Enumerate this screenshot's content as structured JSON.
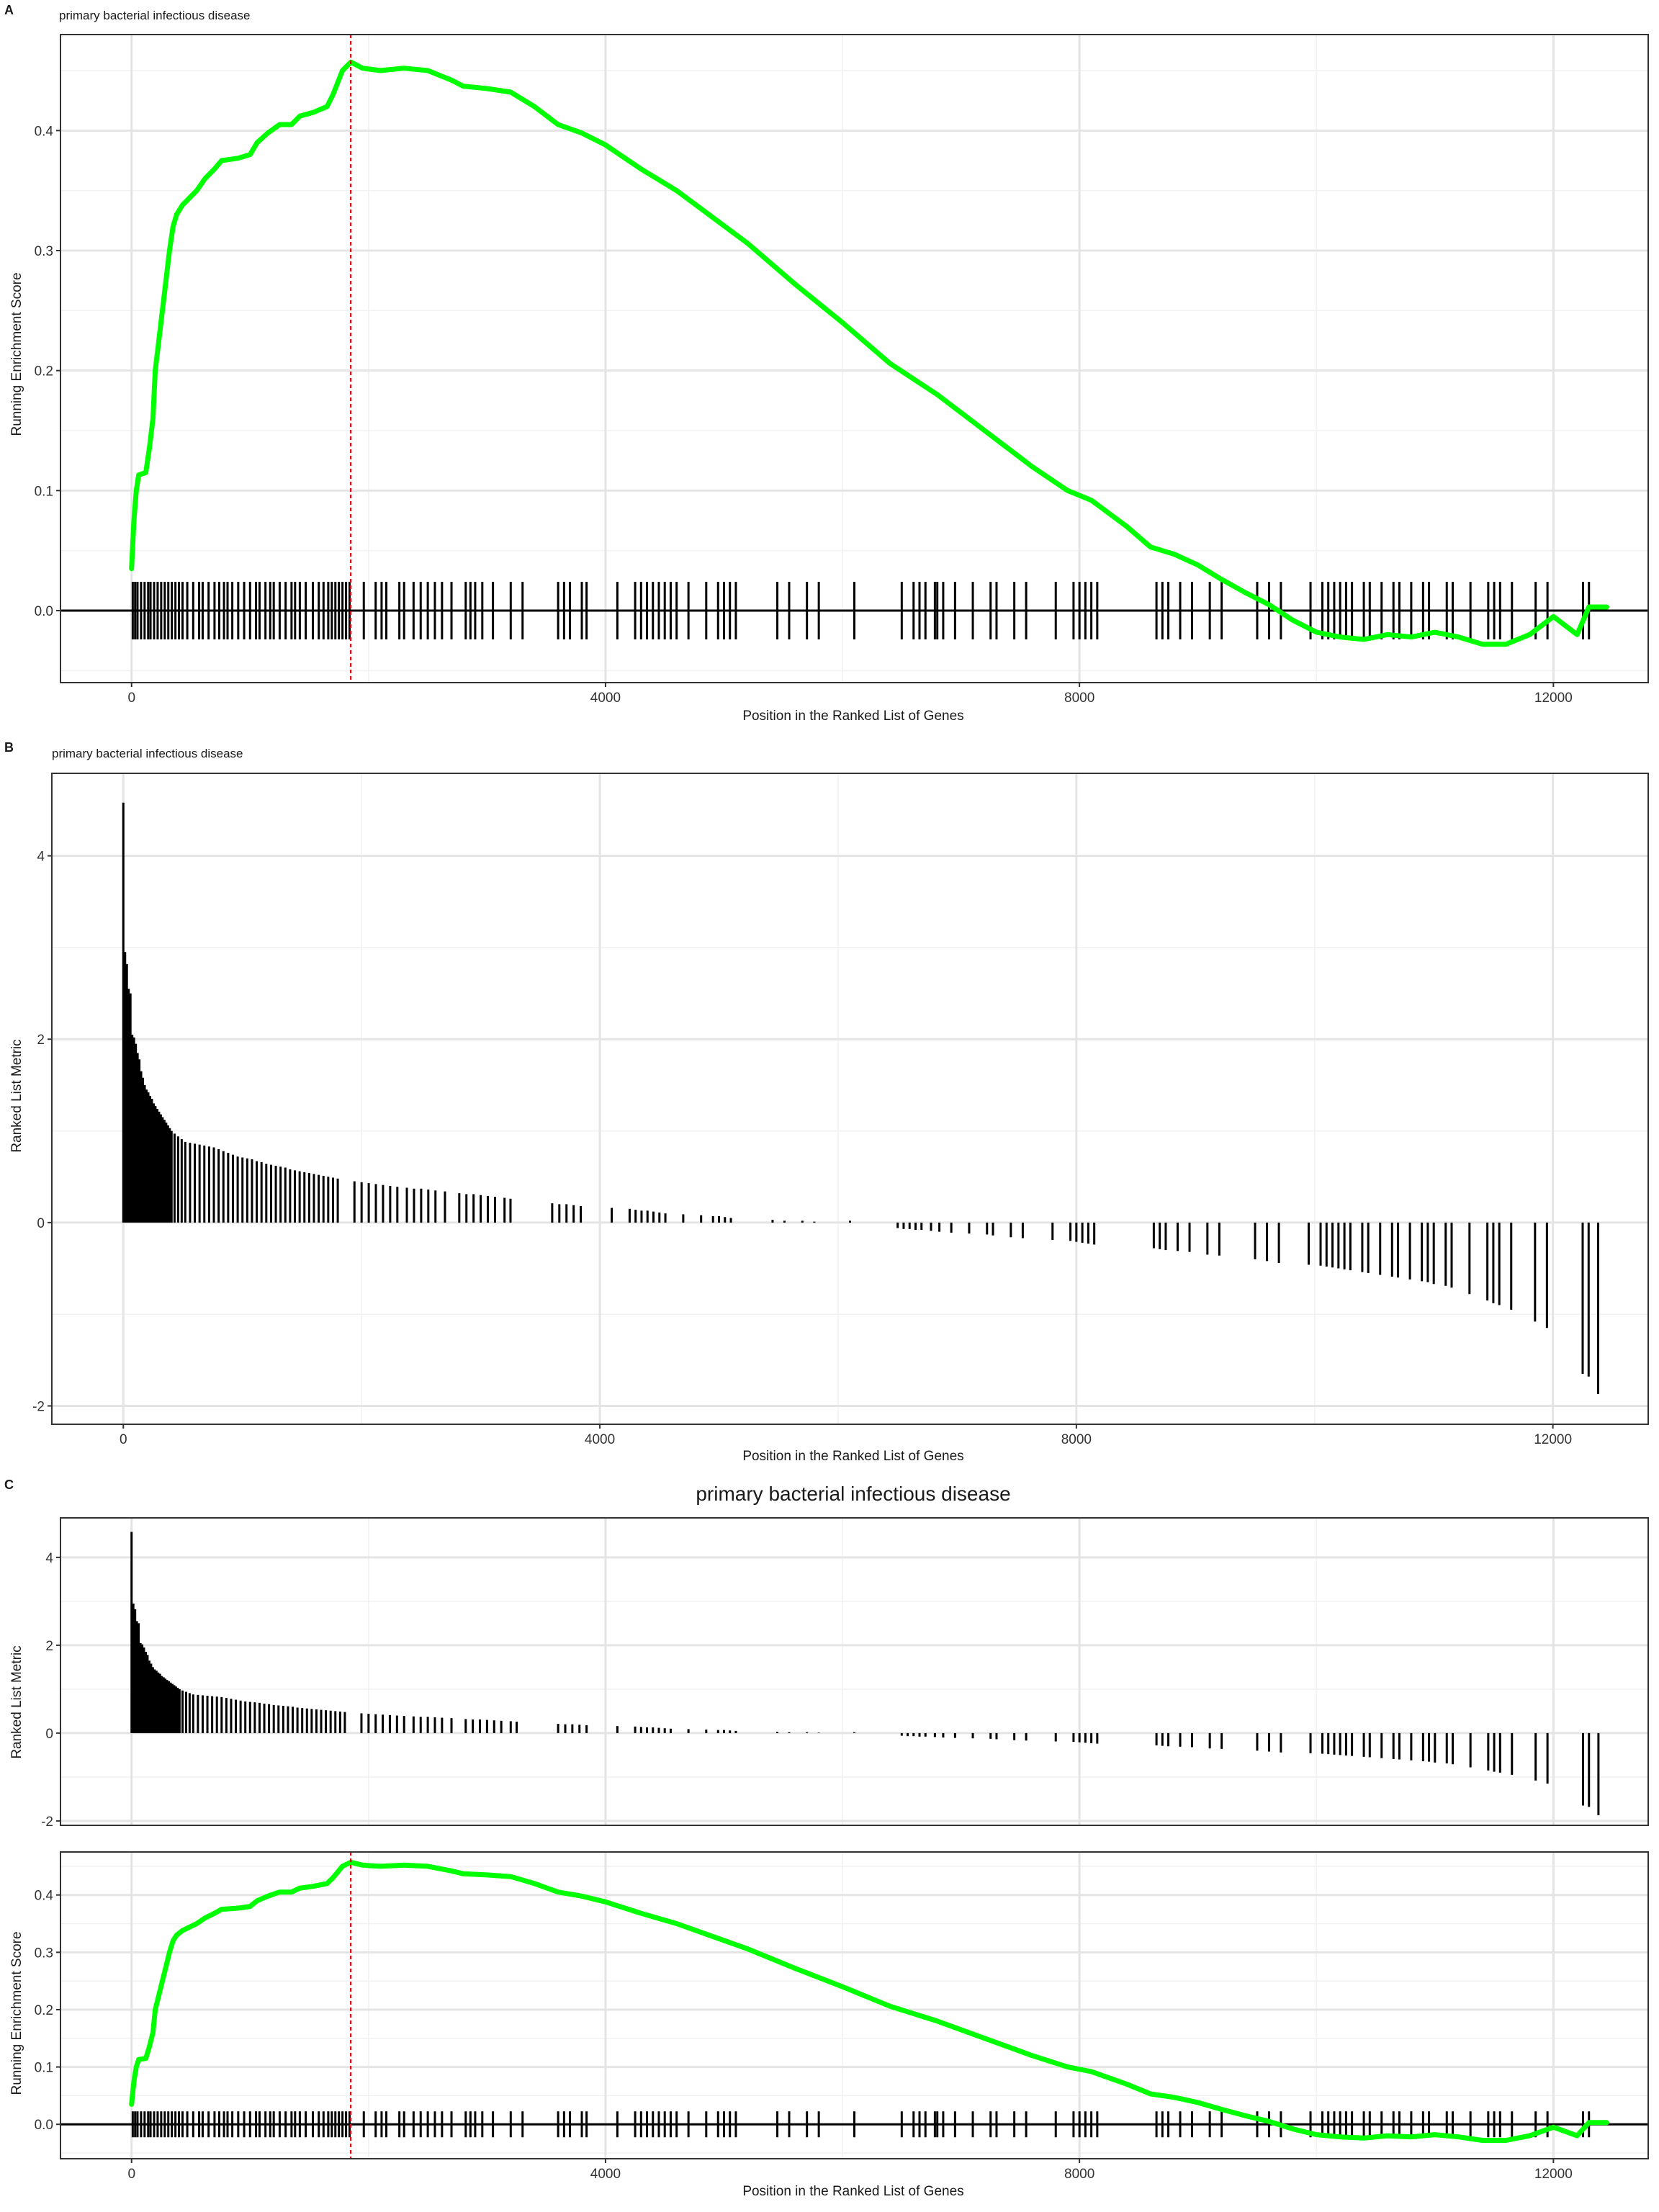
{
  "panels": {
    "A": {
      "tag": "A",
      "title": "primary bacterial infectious disease",
      "xlabel": "Position in the Ranked List of Genes",
      "ylabel": "Running Enrichment Score"
    },
    "B": {
      "tag": "B",
      "title": "primary bacterial infectious disease",
      "xlabel": "Position in the Ranked List of Genes",
      "ylabel": "Ranked List Metric"
    },
    "C": {
      "tag": "C",
      "title": "primary bacterial infectious disease",
      "xlabel": "Position in the Ranked List of Genes",
      "ylabel_top": "Ranked List Metric",
      "ylabel_bottom": "Running Enrichment Score"
    }
  },
  "colors": {
    "curve": "#00ff00",
    "peak_line": "#e8000b",
    "hits": "#000000",
    "bars": "#000000"
  },
  "chart_data": {
    "type": "line",
    "description_free": true,
    "x_ticks": [
      0,
      4000,
      8000,
      12000
    ],
    "xlim": [
      -600,
      12800
    ],
    "es_ticks": [
      0.0,
      0.1,
      0.2,
      0.3,
      0.4
    ],
    "es_tick_labels": [
      "0.0",
      "0.1",
      "0.2",
      "0.3",
      "0.4"
    ],
    "es_ylim": [
      -0.06,
      0.48
    ],
    "metric_ticks": [
      -2,
      0,
      2,
      4
    ],
    "metric_tick_labels": [
      "-2",
      "0",
      "2",
      "4"
    ],
    "metric_ylim": [
      -2.2,
      4.9
    ],
    "metric_ylim_c": [
      -2.1,
      4.9
    ],
    "peak_position": 1850,
    "es_curve": [
      [
        0,
        0.035
      ],
      [
        20,
        0.075
      ],
      [
        40,
        0.1
      ],
      [
        60,
        0.113
      ],
      [
        120,
        0.115
      ],
      [
        150,
        0.135
      ],
      [
        180,
        0.16
      ],
      [
        200,
        0.2
      ],
      [
        230,
        0.225
      ],
      [
        260,
        0.25
      ],
      [
        290,
        0.275
      ],
      [
        320,
        0.3
      ],
      [
        350,
        0.32
      ],
      [
        380,
        0.33
      ],
      [
        430,
        0.338
      ],
      [
        500,
        0.345
      ],
      [
        550,
        0.35
      ],
      [
        620,
        0.36
      ],
      [
        700,
        0.368
      ],
      [
        760,
        0.375
      ],
      [
        900,
        0.377
      ],
      [
        1000,
        0.38
      ],
      [
        1060,
        0.39
      ],
      [
        1150,
        0.398
      ],
      [
        1250,
        0.405
      ],
      [
        1350,
        0.405
      ],
      [
        1420,
        0.412
      ],
      [
        1530,
        0.415
      ],
      [
        1650,
        0.42
      ],
      [
        1700,
        0.43
      ],
      [
        1780,
        0.45
      ],
      [
        1850,
        0.457
      ],
      [
        1950,
        0.452
      ],
      [
        2100,
        0.45
      ],
      [
        2300,
        0.452
      ],
      [
        2500,
        0.45
      ],
      [
        2700,
        0.442
      ],
      [
        2800,
        0.437
      ],
      [
        3000,
        0.435
      ],
      [
        3200,
        0.432
      ],
      [
        3400,
        0.42
      ],
      [
        3600,
        0.405
      ],
      [
        3800,
        0.398
      ],
      [
        4000,
        0.388
      ],
      [
        4300,
        0.368
      ],
      [
        4600,
        0.35
      ],
      [
        4900,
        0.328
      ],
      [
        5200,
        0.306
      ],
      [
        5600,
        0.272
      ],
      [
        6000,
        0.24
      ],
      [
        6400,
        0.206
      ],
      [
        6800,
        0.18
      ],
      [
        7200,
        0.15
      ],
      [
        7600,
        0.12
      ],
      [
        7900,
        0.1
      ],
      [
        8100,
        0.092
      ],
      [
        8400,
        0.07
      ],
      [
        8600,
        0.053
      ],
      [
        8800,
        0.047
      ],
      [
        9000,
        0.038
      ],
      [
        9200,
        0.026
      ],
      [
        9400,
        0.015
      ],
      [
        9600,
        0.005
      ],
      [
        9800,
        -0.008
      ],
      [
        10000,
        -0.018
      ],
      [
        10200,
        -0.022
      ],
      [
        10400,
        -0.024
      ],
      [
        10600,
        -0.02
      ],
      [
        10800,
        -0.022
      ],
      [
        11000,
        -0.018
      ],
      [
        11200,
        -0.022
      ],
      [
        11400,
        -0.028
      ],
      [
        11600,
        -0.028
      ],
      [
        11800,
        -0.02
      ],
      [
        12000,
        -0.005
      ],
      [
        12200,
        -0.02
      ],
      [
        12300,
        0.003
      ],
      [
        12450,
        0.003
      ]
    ],
    "hit_positions": [
      10,
      30,
      50,
      80,
      110,
      140,
      160,
      190,
      220,
      250,
      280,
      310,
      340,
      370,
      400,
      430,
      470,
      520,
      570,
      600,
      650,
      700,
      740,
      780,
      810,
      850,
      900,
      950,
      1000,
      1050,
      1080,
      1130,
      1170,
      1200,
      1250,
      1300,
      1350,
      1380,
      1420,
      1470,
      1530,
      1580,
      1620,
      1660,
      1690,
      1720,
      1750,
      1780,
      1810,
      1840,
      1960,
      2060,
      2110,
      2150,
      2260,
      2300,
      2380,
      2440,
      2500,
      2560,
      2620,
      2700,
      2820,
      2860,
      2900,
      2960,
      3050,
      3200,
      3300,
      3600,
      3650,
      3700,
      3800,
      3840,
      4100,
      4250,
      4300,
      4350,
      4400,
      4450,
      4500,
      4550,
      4600,
      4700,
      4850,
      4950,
      5000,
      5050,
      5100,
      5450,
      5550,
      5700,
      5800,
      6100,
      6500,
      6600,
      6650,
      6700,
      6780,
      6800,
      6850,
      6950,
      7100,
      7250,
      7300,
      7450,
      7550,
      7800,
      7950,
      8000,
      8050,
      8100,
      8150,
      8650,
      8700,
      8750,
      8850,
      8950,
      9100,
      9200,
      9500,
      9600,
      9700,
      9950,
      10050,
      10100,
      10150,
      10200,
      10250,
      10300,
      10400,
      10450,
      10550,
      10650,
      10700,
      10800,
      10900,
      10950,
      11100,
      11150,
      11300,
      11450,
      11500,
      11550,
      11650,
      11850,
      11950,
      12250,
      12300
    ],
    "metric_bars": [
      [
        0,
        4.58
      ],
      [
        15,
        2.95
      ],
      [
        30,
        2.82
      ],
      [
        45,
        2.55
      ],
      [
        60,
        2.5
      ],
      [
        75,
        2.05
      ],
      [
        90,
        2.02
      ],
      [
        105,
        1.95
      ],
      [
        120,
        1.85
      ],
      [
        135,
        1.78
      ],
      [
        150,
        1.65
      ],
      [
        165,
        1.58
      ],
      [
        180,
        1.5
      ],
      [
        195,
        1.45
      ],
      [
        210,
        1.42
      ],
      [
        225,
        1.38
      ],
      [
        240,
        1.35
      ],
      [
        255,
        1.3
      ],
      [
        270,
        1.27
      ],
      [
        285,
        1.24
      ],
      [
        300,
        1.21
      ],
      [
        315,
        1.18
      ],
      [
        330,
        1.15
      ],
      [
        345,
        1.12
      ],
      [
        360,
        1.09
      ],
      [
        375,
        1.06
      ],
      [
        390,
        1.03
      ],
      [
        405,
        1.0
      ],
      [
        430,
        0.97
      ],
      [
        460,
        0.94
      ],
      [
        490,
        0.91
      ],
      [
        520,
        0.88
      ],
      [
        560,
        0.87
      ],
      [
        600,
        0.86
      ],
      [
        640,
        0.85
      ],
      [
        680,
        0.84
      ],
      [
        720,
        0.83
      ],
      [
        760,
        0.82
      ],
      [
        800,
        0.8
      ],
      [
        840,
        0.78
      ],
      [
        880,
        0.76
      ],
      [
        920,
        0.74
      ],
      [
        960,
        0.72
      ],
      [
        1000,
        0.71
      ],
      [
        1040,
        0.7
      ],
      [
        1080,
        0.69
      ],
      [
        1120,
        0.67
      ],
      [
        1160,
        0.66
      ],
      [
        1200,
        0.64
      ],
      [
        1240,
        0.63
      ],
      [
        1280,
        0.62
      ],
      [
        1320,
        0.61
      ],
      [
        1360,
        0.6
      ],
      [
        1400,
        0.58
      ],
      [
        1440,
        0.57
      ],
      [
        1480,
        0.56
      ],
      [
        1520,
        0.55
      ],
      [
        1560,
        0.54
      ],
      [
        1600,
        0.53
      ],
      [
        1640,
        0.52
      ],
      [
        1680,
        0.51
      ],
      [
        1720,
        0.5
      ],
      [
        1760,
        0.49
      ],
      [
        1800,
        0.48
      ],
      [
        1940,
        0.45
      ],
      [
        2000,
        0.44
      ],
      [
        2060,
        0.43
      ],
      [
        2120,
        0.42
      ],
      [
        2180,
        0.41
      ],
      [
        2240,
        0.4
      ],
      [
        2300,
        0.39
      ],
      [
        2380,
        0.38
      ],
      [
        2440,
        0.37
      ],
      [
        2500,
        0.37
      ],
      [
        2560,
        0.36
      ],
      [
        2620,
        0.35
      ],
      [
        2700,
        0.34
      ],
      [
        2820,
        0.32
      ],
      [
        2880,
        0.31
      ],
      [
        2940,
        0.31
      ],
      [
        3000,
        0.3
      ],
      [
        3060,
        0.29
      ],
      [
        3120,
        0.28
      ],
      [
        3200,
        0.27
      ],
      [
        3250,
        0.26
      ],
      [
        3600,
        0.21
      ],
      [
        3660,
        0.2
      ],
      [
        3720,
        0.2
      ],
      [
        3780,
        0.19
      ],
      [
        3840,
        0.18
      ],
      [
        4100,
        0.16
      ],
      [
        4250,
        0.15
      ],
      [
        4300,
        0.14
      ],
      [
        4350,
        0.13
      ],
      [
        4400,
        0.13
      ],
      [
        4450,
        0.12
      ],
      [
        4500,
        0.11
      ],
      [
        4550,
        0.1
      ],
      [
        4700,
        0.09
      ],
      [
        4850,
        0.08
      ],
      [
        4950,
        0.07
      ],
      [
        5000,
        0.07
      ],
      [
        5050,
        0.06
      ],
      [
        5100,
        0.05
      ],
      [
        5450,
        0.03
      ],
      [
        5550,
        0.02
      ],
      [
        5700,
        0.02
      ],
      [
        5800,
        0.01
      ],
      [
        6100,
        0.02
      ],
      [
        6500,
        -0.06
      ],
      [
        6550,
        -0.07
      ],
      [
        6600,
        -0.07
      ],
      [
        6650,
        -0.08
      ],
      [
        6700,
        -0.08
      ],
      [
        6780,
        -0.09
      ],
      [
        6850,
        -0.1
      ],
      [
        6950,
        -0.11
      ],
      [
        7100,
        -0.12
      ],
      [
        7250,
        -0.13
      ],
      [
        7300,
        -0.14
      ],
      [
        7450,
        -0.16
      ],
      [
        7550,
        -0.17
      ],
      [
        7800,
        -0.19
      ],
      [
        7950,
        -0.2
      ],
      [
        8000,
        -0.21
      ],
      [
        8050,
        -0.22
      ],
      [
        8100,
        -0.23
      ],
      [
        8150,
        -0.24
      ],
      [
        8650,
        -0.28
      ],
      [
        8700,
        -0.29
      ],
      [
        8750,
        -0.3
      ],
      [
        8850,
        -0.31
      ],
      [
        8950,
        -0.32
      ],
      [
        9100,
        -0.35
      ],
      [
        9200,
        -0.36
      ],
      [
        9500,
        -0.4
      ],
      [
        9600,
        -0.42
      ],
      [
        9700,
        -0.44
      ],
      [
        9950,
        -0.46
      ],
      [
        10050,
        -0.47
      ],
      [
        10100,
        -0.48
      ],
      [
        10150,
        -0.49
      ],
      [
        10200,
        -0.5
      ],
      [
        10250,
        -0.51
      ],
      [
        10300,
        -0.52
      ],
      [
        10400,
        -0.54
      ],
      [
        10450,
        -0.55
      ],
      [
        10550,
        -0.57
      ],
      [
        10650,
        -0.59
      ],
      [
        10700,
        -0.6
      ],
      [
        10800,
        -0.62
      ],
      [
        10900,
        -0.64
      ],
      [
        10950,
        -0.65
      ],
      [
        11000,
        -0.67
      ],
      [
        11100,
        -0.69
      ],
      [
        11150,
        -0.71
      ],
      [
        11300,
        -0.78
      ],
      [
        11450,
        -0.85
      ],
      [
        11500,
        -0.88
      ],
      [
        11550,
        -0.9
      ],
      [
        11650,
        -0.95
      ],
      [
        11850,
        -1.08
      ],
      [
        11950,
        -1.15
      ],
      [
        12250,
        -1.65
      ],
      [
        12300,
        -1.68
      ],
      [
        12380,
        -1.87
      ]
    ]
  }
}
